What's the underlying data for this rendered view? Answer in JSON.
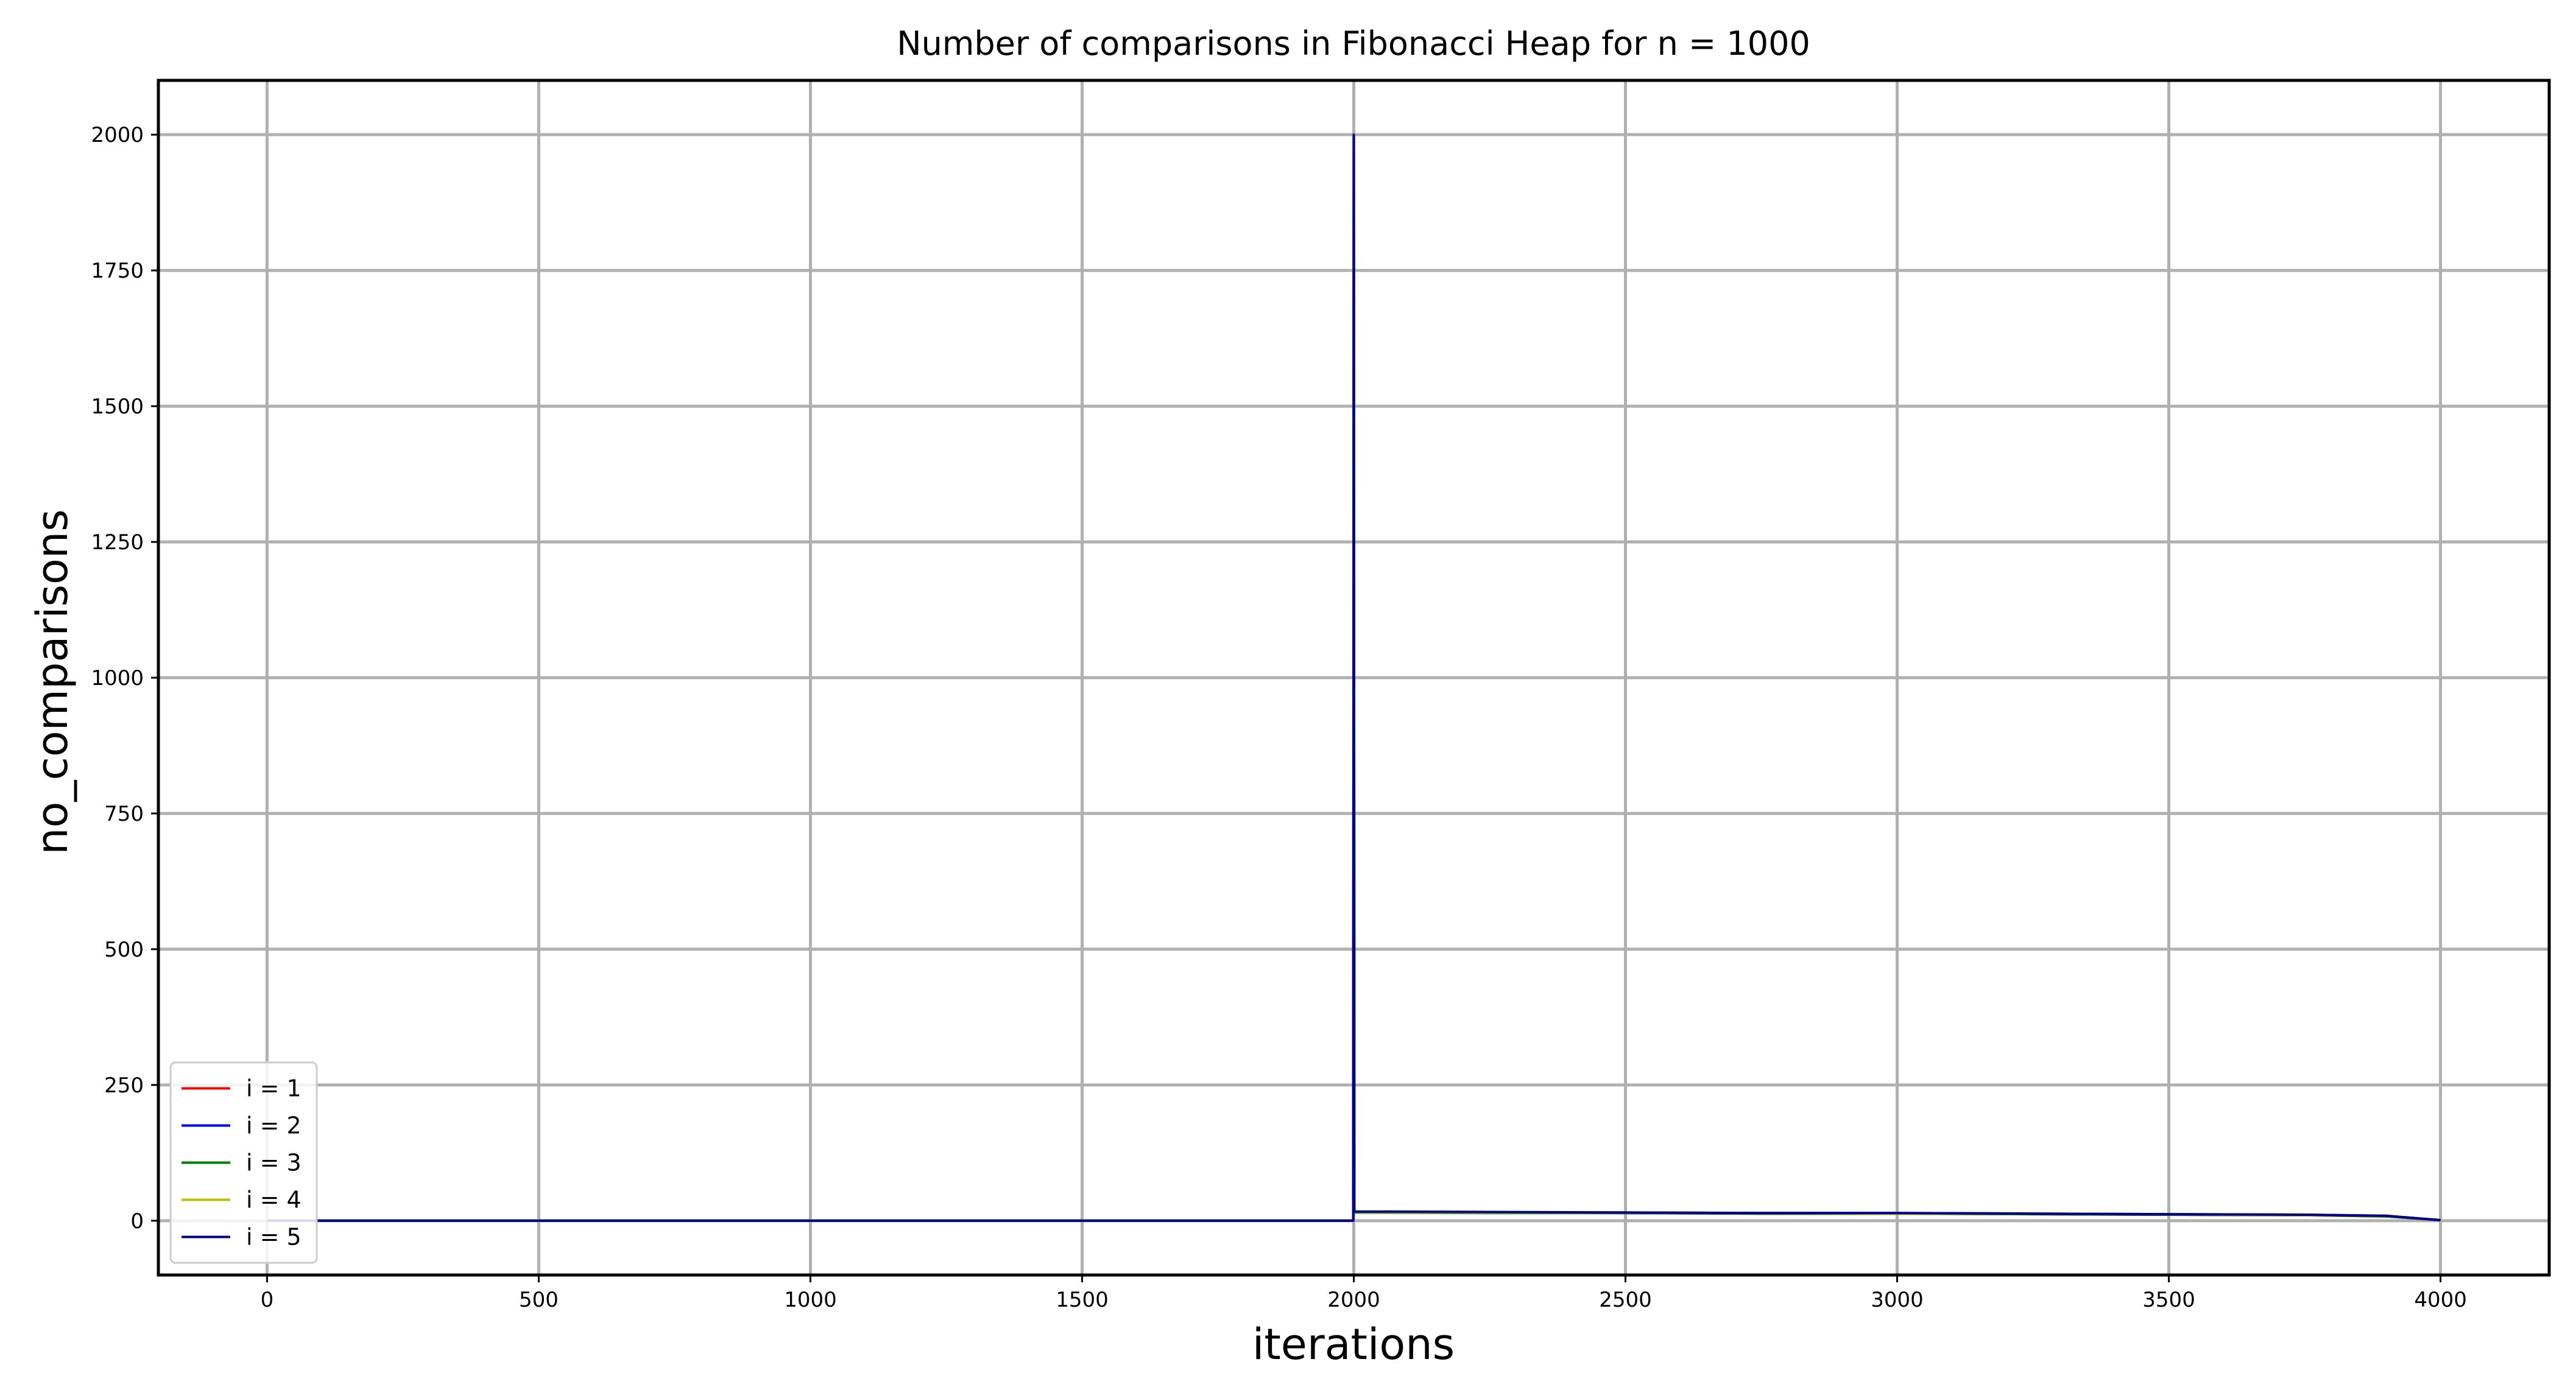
{
  "chart_data": {
    "type": "line",
    "title": "Number of comparisons in Fibonacci Heap for n = 1000",
    "xlabel": "iterations",
    "ylabel": "no_comparisons",
    "xlim": [
      -200,
      4200
    ],
    "ylim": [
      -100,
      2100
    ],
    "xticks": [
      0,
      500,
      1000,
      1500,
      2000,
      2500,
      3000,
      3500,
      4000
    ],
    "yticks": [
      0,
      250,
      500,
      750,
      1000,
      1250,
      1500,
      1750,
      2000
    ],
    "grid": true,
    "legend_position": "lower-left",
    "series": [
      {
        "name": "i = 1",
        "color": "#ff0000",
        "x": [
          0,
          1999,
          2000,
          2001,
          2250,
          2500,
          2750,
          3000,
          3250,
          3500,
          3750,
          3900,
          4000
        ],
        "y": [
          0,
          0,
          2000,
          15,
          15,
          14,
          13,
          13,
          12,
          11,
          10,
          8,
          1
        ]
      },
      {
        "name": "i = 2",
        "color": "#0000ff",
        "x": [
          0,
          1999,
          2000,
          2001,
          2250,
          2500,
          2750,
          3000,
          3250,
          3500,
          3750,
          3900,
          4000
        ],
        "y": [
          0,
          0,
          2000,
          16,
          15,
          15,
          14,
          14,
          13,
          12,
          11,
          9,
          1
        ]
      },
      {
        "name": "i = 3",
        "color": "#008000",
        "x": [
          0,
          1999,
          2000,
          2001,
          2250,
          2500,
          2750,
          3000,
          3250,
          3500,
          3750,
          3900,
          4000
        ],
        "y": [
          0,
          0,
          2000,
          15,
          14,
          14,
          13,
          13,
          12,
          11,
          10,
          8,
          1
        ]
      },
      {
        "name": "i = 4",
        "color": "#bfbf00",
        "x": [
          0,
          1999,
          2000,
          2001,
          2250,
          2500,
          2750,
          3000,
          3250,
          3500,
          3750,
          3900,
          4000
        ],
        "y": [
          0,
          0,
          2000,
          16,
          15,
          15,
          14,
          13,
          13,
          12,
          10,
          9,
          1
        ]
      },
      {
        "name": "i = 5",
        "color": "#00008b",
        "x": [
          0,
          1999,
          2000,
          2001,
          2250,
          2500,
          2750,
          3000,
          3250,
          3500,
          3750,
          3900,
          4000
        ],
        "y": [
          0,
          0,
          2000,
          17,
          16,
          15,
          14,
          14,
          13,
          12,
          11,
          9,
          1
        ]
      }
    ]
  }
}
